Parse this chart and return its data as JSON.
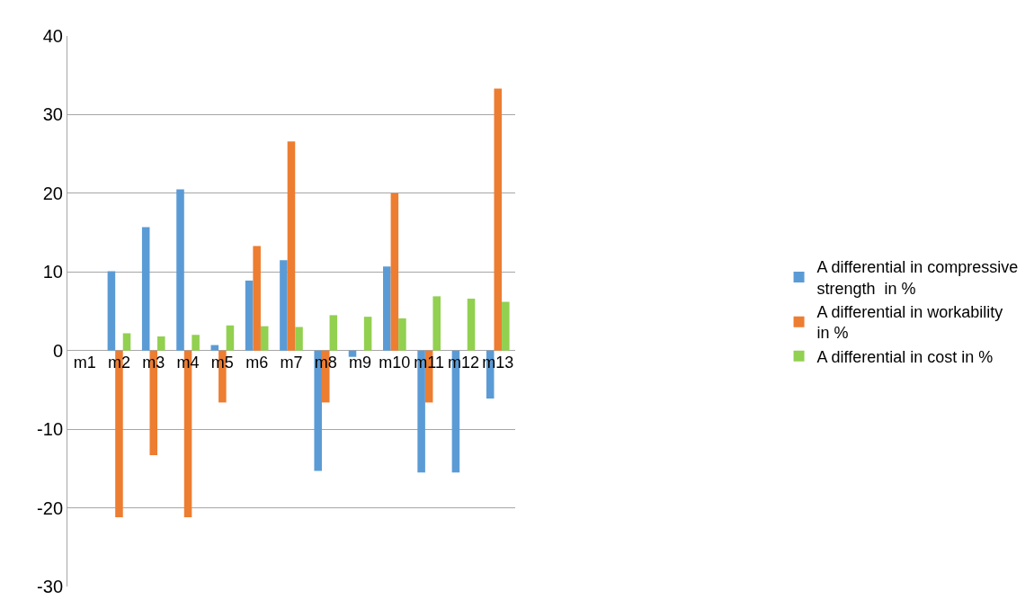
{
  "chart_data": {
    "type": "bar",
    "categories": [
      "m1",
      "m2",
      "m3",
      "m4",
      "m5",
      "m6",
      "m7",
      "m8",
      "m9",
      "m10",
      "m11",
      "m12",
      "m13"
    ],
    "series": [
      {
        "name": "A differential in compressive strength  in %",
        "color": "#5b9bd5",
        "values": [
          0,
          10.1,
          15.7,
          20.5,
          0.7,
          8.9,
          11.5,
          -15.3,
          -0.8,
          10.7,
          -15.5,
          -15.5,
          -6.1
        ]
      },
      {
        "name": "A differential in workability  in %",
        "color": "#ed7d31",
        "values": [
          0,
          -21.2,
          -13.3,
          -21.2,
          -6.6,
          13.3,
          26.6,
          -6.6,
          0,
          20,
          -6.6,
          0,
          33.3
        ]
      },
      {
        "name": "A differential in cost in %",
        "color": "#92d050",
        "values": [
          0,
          2.2,
          1.8,
          2.0,
          3.2,
          3.1,
          3.0,
          4.5,
          4.3,
          4.1,
          6.9,
          6.6,
          6.2
        ]
      }
    ],
    "ylim": [
      -30,
      40
    ],
    "yticks": [
      -30,
      -20,
      -10,
      0,
      10,
      20,
      30,
      40
    ],
    "grid": "y",
    "legend": "right"
  }
}
